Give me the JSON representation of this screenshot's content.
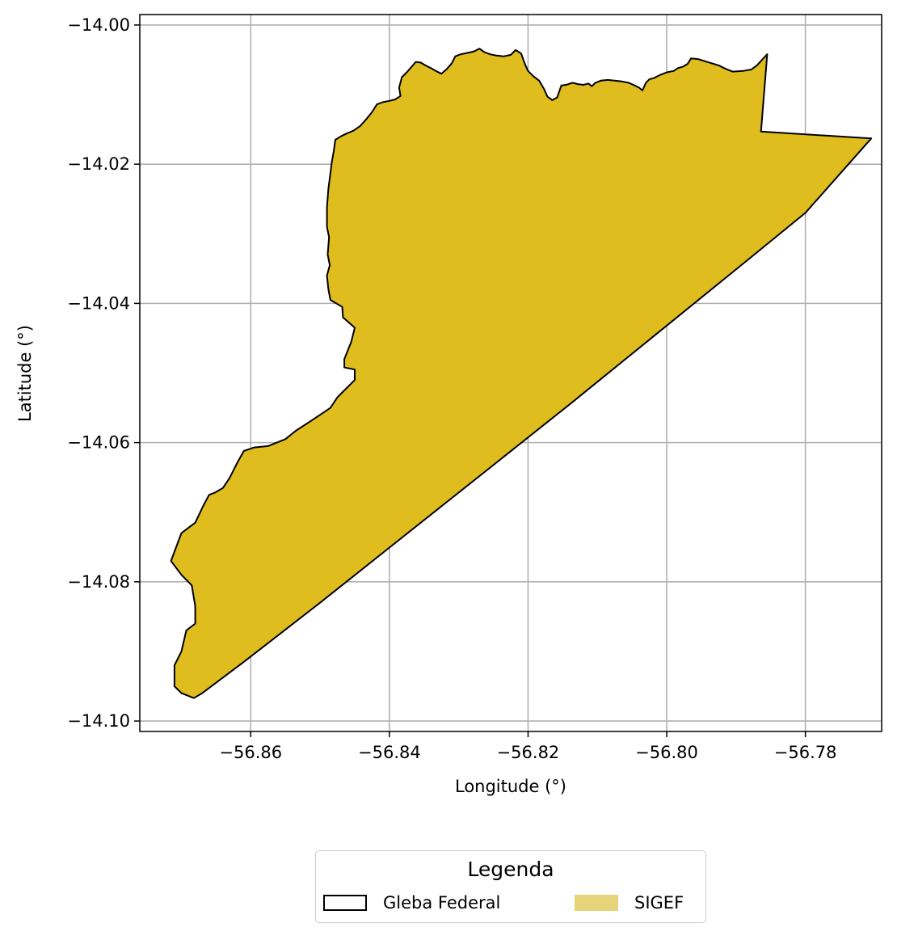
{
  "chart_data": {
    "type": "map",
    "xlabel": "Longitude (°)",
    "ylabel": "Latitude (°)",
    "xlim": [
      -56.876,
      -56.769
    ],
    "ylim": [
      -14.1015,
      -13.9985
    ],
    "xticks": [
      -56.86,
      -56.84,
      -56.82,
      -56.8,
      -56.78
    ],
    "yticks": [
      -14.0,
      -14.02,
      -14.04,
      -14.06,
      -14.08,
      -14.1
    ],
    "xtick_labels": [
      "−56.86",
      "−56.84",
      "−56.82",
      "−56.80",
      "−56.78"
    ],
    "ytick_labels": [
      "−14.00",
      "−14.02",
      "−14.04",
      "−14.06",
      "−14.08",
      "−14.10"
    ],
    "grid": true,
    "layers": [
      {
        "name": "SIGEF",
        "fill": "#dfbd1f",
        "edge": "#000000",
        "polygon": [
          [
            -56.8682,
            -14.0967
          ],
          [
            -56.867,
            -14.096
          ],
          [
            -56.861,
            -14.0915
          ],
          [
            -56.85,
            -14.083
          ],
          [
            -56.838,
            -14.0735
          ],
          [
            -56.826,
            -14.064
          ],
          [
            -56.814,
            -14.0545
          ],
          [
            -56.801,
            -14.044
          ],
          [
            -56.788,
            -14.0335
          ],
          [
            -56.78,
            -14.027
          ],
          [
            -56.7705,
            -14.0163
          ],
          [
            -56.7864,
            -14.0153
          ],
          [
            -56.7855,
            -14.0042
          ],
          [
            -56.787,
            -14.0058
          ],
          [
            -56.7878,
            -14.0064
          ],
          [
            -56.789,
            -14.0066
          ],
          [
            -56.7905,
            -14.0067
          ],
          [
            -56.7915,
            -14.0063
          ],
          [
            -56.7925,
            -14.0058
          ],
          [
            -56.7935,
            -14.0055
          ],
          [
            -56.7945,
            -14.0052
          ],
          [
            -56.7955,
            -14.0049
          ],
          [
            -56.7965,
            -14.0048
          ],
          [
            -56.797,
            -14.0056
          ],
          [
            -56.7977,
            -14.006
          ],
          [
            -56.7984,
            -14.0062
          ],
          [
            -56.799,
            -14.0066
          ],
          [
            -56.8,
            -14.0068
          ],
          [
            -56.801,
            -14.0072
          ],
          [
            -56.8018,
            -14.0076
          ],
          [
            -56.8025,
            -14.0078
          ],
          [
            -56.803,
            -14.0083
          ],
          [
            -56.8035,
            -14.0094
          ],
          [
            -56.804,
            -14.009
          ],
          [
            -56.8048,
            -14.0086
          ],
          [
            -56.8055,
            -14.0083
          ],
          [
            -56.8065,
            -14.0081
          ],
          [
            -56.8075,
            -14.008
          ],
          [
            -56.8085,
            -14.0079
          ],
          [
            -56.8095,
            -14.008
          ],
          [
            -56.8103,
            -14.0083
          ],
          [
            -56.8108,
            -14.0088
          ],
          [
            -56.8113,
            -14.0084
          ],
          [
            -56.812,
            -14.0086
          ],
          [
            -56.8128,
            -14.0085
          ],
          [
            -56.8136,
            -14.0083
          ],
          [
            -56.8145,
            -14.0086
          ],
          [
            -56.8152,
            -14.0087
          ],
          [
            -56.8158,
            -14.0104
          ],
          [
            -56.8165,
            -14.0108
          ],
          [
            -56.8172,
            -14.0103
          ],
          [
            -56.8177,
            -14.0092
          ],
          [
            -56.8184,
            -14.008
          ],
          [
            -56.8192,
            -14.0074
          ],
          [
            -56.82,
            -14.0066
          ],
          [
            -56.8205,
            -14.0055
          ],
          [
            -56.821,
            -14.0041
          ],
          [
            -56.8218,
            -14.0036
          ],
          [
            -56.8225,
            -14.0043
          ],
          [
            -56.8235,
            -14.0045
          ],
          [
            -56.8245,
            -14.0044
          ],
          [
            -56.8255,
            -14.0042
          ],
          [
            -56.8263,
            -14.0039
          ],
          [
            -56.827,
            -14.0034
          ],
          [
            -56.8278,
            -14.0038
          ],
          [
            -56.8287,
            -14.004
          ],
          [
            -56.8297,
            -14.0042
          ],
          [
            -56.8305,
            -14.0045
          ],
          [
            -56.831,
            -14.0055
          ],
          [
            -56.8317,
            -14.0063
          ],
          [
            -56.8325,
            -14.007
          ],
          [
            -56.8333,
            -14.0066
          ],
          [
            -56.834,
            -14.0062
          ],
          [
            -56.8348,
            -14.0058
          ],
          [
            -56.8355,
            -14.0054
          ],
          [
            -56.8362,
            -14.0053
          ],
          [
            -56.8368,
            -14.006
          ],
          [
            -56.8375,
            -14.0068
          ],
          [
            -56.8382,
            -14.0075
          ],
          [
            -56.8386,
            -14.009
          ],
          [
            -56.8384,
            -14.0102
          ],
          [
            -56.8392,
            -14.0107
          ],
          [
            -56.84,
            -14.0109
          ],
          [
            -56.841,
            -14.0111
          ],
          [
            -56.8418,
            -14.0114
          ],
          [
            -56.8425,
            -14.0125
          ],
          [
            -56.8433,
            -14.0135
          ],
          [
            -56.8442,
            -14.0145
          ],
          [
            -56.8452,
            -14.0152
          ],
          [
            -56.8462,
            -14.0156
          ],
          [
            -56.847,
            -14.016
          ],
          [
            -56.8478,
            -14.0165
          ],
          [
            -56.848,
            -14.018
          ],
          [
            -56.8483,
            -14.0196
          ],
          [
            -56.8486,
            -14.022
          ],
          [
            -56.8488,
            -14.0235
          ],
          [
            -56.849,
            -14.0262
          ],
          [
            -56.849,
            -14.029
          ],
          [
            -56.8487,
            -14.0305
          ],
          [
            -56.8489,
            -14.033
          ],
          [
            -56.8486,
            -14.0345
          ],
          [
            -56.849,
            -14.036
          ],
          [
            -56.8488,
            -14.038
          ],
          [
            -56.8485,
            -14.0395
          ],
          [
            -56.8468,
            -14.0405
          ],
          [
            -56.8467,
            -14.042
          ],
          [
            -56.845,
            -14.0435
          ],
          [
            -56.8455,
            -14.0455
          ],
          [
            -56.8465,
            -14.048
          ],
          [
            -56.8465,
            -14.0492
          ],
          [
            -56.845,
            -14.0495
          ],
          [
            -56.845,
            -14.051
          ],
          [
            -56.8465,
            -14.0525
          ],
          [
            -56.8475,
            -14.0535
          ],
          [
            -56.8485,
            -14.055
          ],
          [
            -56.85,
            -14.056
          ],
          [
            -56.8515,
            -14.057
          ],
          [
            -56.8535,
            -14.0583
          ],
          [
            -56.855,
            -14.0595
          ],
          [
            -56.8575,
            -14.0605
          ],
          [
            -56.8595,
            -14.0607
          ],
          [
            -56.861,
            -14.0612
          ],
          [
            -56.862,
            -14.063
          ],
          [
            -56.863,
            -14.065
          ],
          [
            -56.864,
            -14.0665
          ],
          [
            -56.8652,
            -14.0672
          ],
          [
            -56.866,
            -14.0675
          ],
          [
            -56.8668,
            -14.069
          ],
          [
            -56.868,
            -14.0715
          ],
          [
            -56.87,
            -14.073
          ],
          [
            -56.8715,
            -14.077
          ],
          [
            -56.87,
            -14.079
          ],
          [
            -56.8685,
            -14.0805
          ],
          [
            -56.868,
            -14.0835
          ],
          [
            -56.868,
            -14.086
          ],
          [
            -56.8693,
            -14.087
          ],
          [
            -56.87,
            -14.09
          ],
          [
            -56.871,
            -14.092
          ],
          [
            -56.871,
            -14.095
          ],
          [
            -56.87,
            -14.096
          ]
        ]
      },
      {
        "name": "Gleba Federal",
        "fill": "none",
        "edge": "#000000"
      }
    ],
    "legend": {
      "title": "Legenda",
      "placement": "bottom-center",
      "ncol": 2,
      "entries": [
        {
          "label": "Gleba Federal",
          "fill": "#ffffff",
          "edge": "#000000"
        },
        {
          "label": "SIGEF",
          "fill": "#e6d47a",
          "edge": "#e6d47a"
        }
      ]
    }
  }
}
